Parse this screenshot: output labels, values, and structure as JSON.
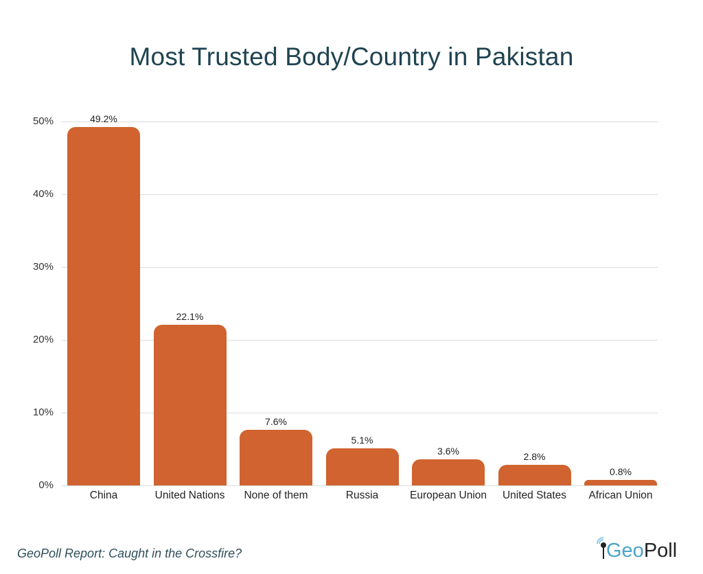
{
  "title": "Most Trusted Body/Country in Pakistan",
  "source": "GeoPoll Report: Caught in the Crossfire?",
  "logo": {
    "geo": "Geo",
    "poll": "Poll",
    "icon": "signal-pin-icon"
  },
  "colors": {
    "bar": "#d0632f",
    "title": "#1f4350",
    "grid": "#dcdcdc"
  },
  "y_ticks": [
    "0%",
    "10%",
    "20%",
    "30%",
    "40%",
    "50%"
  ],
  "chart_data": {
    "type": "bar",
    "title": "Most Trusted Body/Country in Pakistan",
    "xlabel": "",
    "ylabel": "",
    "ylim": [
      0,
      50
    ],
    "grid": true,
    "categories": [
      "China",
      "United Nations",
      "None of them",
      "Russia",
      "European Union",
      "United States",
      "African Union"
    ],
    "values": [
      49.2,
      22.1,
      7.6,
      5.1,
      3.6,
      2.8,
      0.8
    ],
    "value_labels": [
      "49.2%",
      "22.1%",
      "7.6%",
      "5.1%",
      "3.6%",
      "2.8%",
      "0.8%"
    ],
    "y_tick_labels": [
      "0%",
      "10%",
      "20%",
      "30%",
      "40%",
      "50%"
    ],
    "annotation": "GeoPoll Report: Caught in the Crossfire?"
  }
}
